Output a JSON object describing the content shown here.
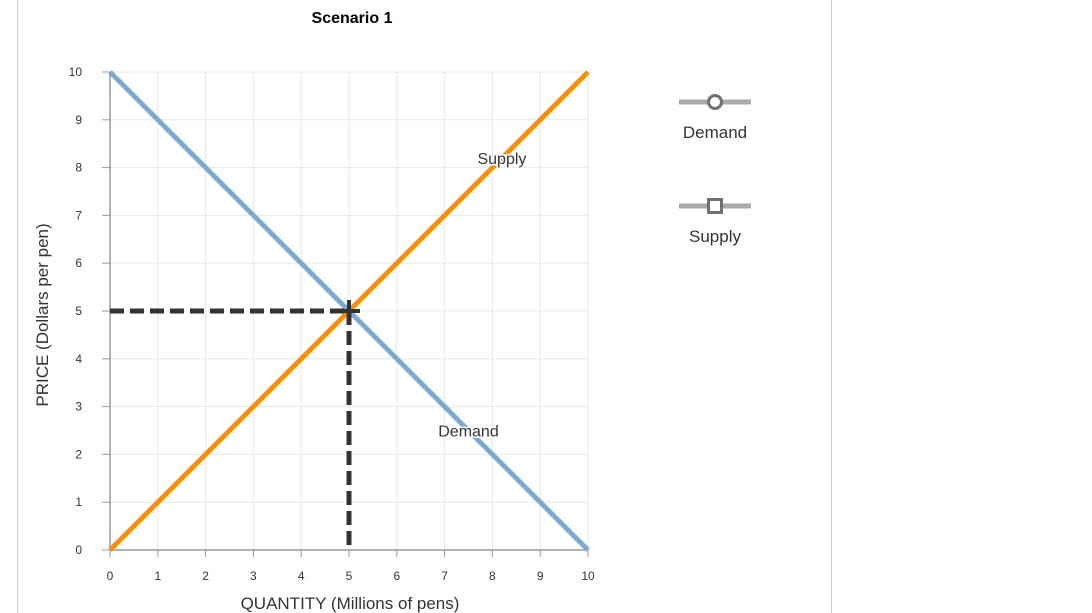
{
  "chart_data": {
    "type": "line",
    "title": "Scenario 1",
    "xlabel": "QUANTITY (Millions of pens)",
    "ylabel": "PRICE (Dollars per pen)",
    "xlim": [
      0,
      10
    ],
    "ylim": [
      0,
      10
    ],
    "x_ticks": [
      "0",
      "1",
      "2",
      "3",
      "4",
      "5",
      "6",
      "7",
      "8",
      "9",
      "10"
    ],
    "y_ticks": [
      "0",
      "1",
      "2",
      "3",
      "4",
      "5",
      "6",
      "7",
      "8",
      "9",
      "10"
    ],
    "grid": true,
    "legend_position": "right",
    "series": [
      {
        "name": "Demand",
        "color": "#7ea9d1",
        "marker": "circle",
        "x": [
          0,
          10
        ],
        "y": [
          10,
          0
        ],
        "label": "Demand",
        "label_at": [
          7.5,
          2.5
        ]
      },
      {
        "name": "Supply",
        "color": "#f7900f",
        "marker": "square",
        "x": [
          0,
          10
        ],
        "y": [
          0,
          10
        ],
        "label": "Supply",
        "label_at": [
          8.2,
          8.2
        ]
      }
    ],
    "equilibrium": {
      "x": 5,
      "y": 5,
      "color": "#333333",
      "marker": "cross",
      "dashed_guides": true
    }
  }
}
